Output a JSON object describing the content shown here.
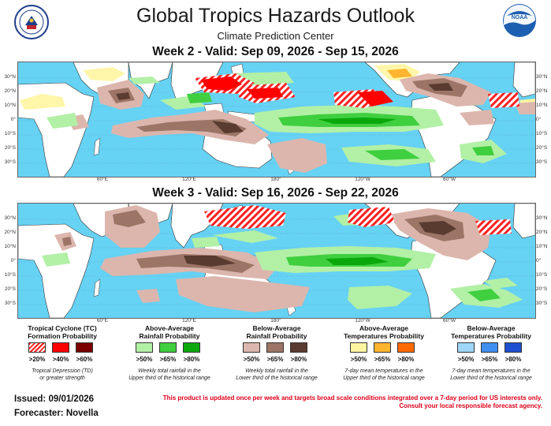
{
  "header": {
    "title": "Global Tropics Hazards Outlook",
    "subtitle": "Climate Prediction Center"
  },
  "logos": {
    "left": "doc-seal-icon",
    "right": "noaa-logo-icon"
  },
  "maps": [
    {
      "title": "Week 2 - Valid: Sep 09, 2026 - Sep 15, 2026"
    },
    {
      "title": "Week 3 - Valid: Sep 16, 2026 - Sep 22, 2026"
    }
  ],
  "axes": {
    "lat_labels": [
      "30°N",
      "20°N",
      "10°N",
      "0°",
      "10°S",
      "20°S",
      "30°S"
    ],
    "lon_labels": [
      "60°E",
      "120°E",
      "180°",
      "120°W",
      "60°W"
    ]
  },
  "legend": [
    {
      "title_lines": [
        "Tropical Cyclone (TC)",
        "Formation Probability"
      ],
      "swatches": [
        ">20%",
        ">40%",
        ">60%"
      ],
      "colors": [
        "hatch-red",
        "#ff0000",
        "#7a0000"
      ],
      "note_lines": [
        "Tropical Depression (TD)",
        "or greater strength"
      ]
    },
    {
      "title_lines": [
        "Above-Average",
        "Rainfall Probability"
      ],
      "swatches": [
        ">50%",
        ">65%",
        ">80%"
      ],
      "colors": [
        "#b2f0a6",
        "#3fcf3f",
        "#0ba80b"
      ],
      "note_lines": [
        "Weekly total rainfall in the",
        "Upper third of the historical range"
      ]
    },
    {
      "title_lines": [
        "Below-Average",
        "Rainfall Probability"
      ],
      "swatches": [
        ">50%",
        ">65%",
        ">80%"
      ],
      "colors": [
        "#dcb6ad",
        "#9c7567",
        "#5a3b30"
      ],
      "note_lines": [
        "Weekly total rainfall in the",
        "Lower third of the historical range"
      ]
    },
    {
      "title_lines": [
        "Above-Average",
        "Temperatures Probability"
      ],
      "swatches": [
        ">50%",
        ">65%",
        ">80%"
      ],
      "colors": [
        "#fff5a0",
        "#ffb52e",
        "#ff6a00"
      ],
      "note_lines": [
        "7-day mean temperatures in the",
        "Upper third of the historical range"
      ]
    },
    {
      "title_lines": [
        "Below-Average",
        "Temperatures Probability"
      ],
      "swatches": [
        ">50%",
        ">65%",
        ">80%"
      ],
      "colors": [
        "#9fd6f7",
        "#3f8ff0",
        "#1e4fd0"
      ],
      "note_lines": [
        "7-day mean temperatures in the",
        "Lower third of the historical range"
      ]
    }
  ],
  "footer": {
    "issued": "Issued: 09/01/2026",
    "forecaster": "Forecaster: Novella",
    "disclaimer_lines": [
      "This product is updated once per week and targets broad scale conditions integrated over a 7-day period for US interests only.",
      "Consult your local responsible forecast agency."
    ]
  }
}
